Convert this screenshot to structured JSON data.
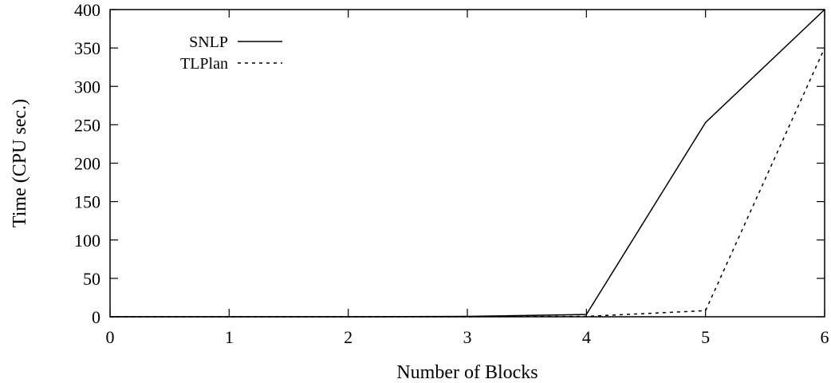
{
  "chart_data": {
    "type": "line",
    "title": "",
    "xlabel": "Number of Blocks",
    "ylabel": "Time (CPU sec.)",
    "xlim": [
      0,
      6
    ],
    "ylim": [
      0,
      400
    ],
    "xticks": [
      0,
      1,
      2,
      3,
      4,
      5,
      6
    ],
    "yticks": [
      0,
      50,
      100,
      150,
      200,
      250,
      300,
      350,
      400
    ],
    "grid": false,
    "legend_position": "top-left",
    "series": [
      {
        "name": "SNLP",
        "style": "solid",
        "color": "#000000",
        "x": [
          0,
          1,
          2,
          3,
          4,
          5,
          6
        ],
        "y": [
          0,
          0,
          0,
          0.5,
          3,
          253,
          400
        ]
      },
      {
        "name": "TLPlan",
        "style": "dotted",
        "color": "#000000",
        "x": [
          0,
          1,
          2,
          3,
          4,
          5,
          6
        ],
        "y": [
          0,
          0,
          0,
          0,
          0.5,
          8,
          350
        ]
      }
    ]
  }
}
